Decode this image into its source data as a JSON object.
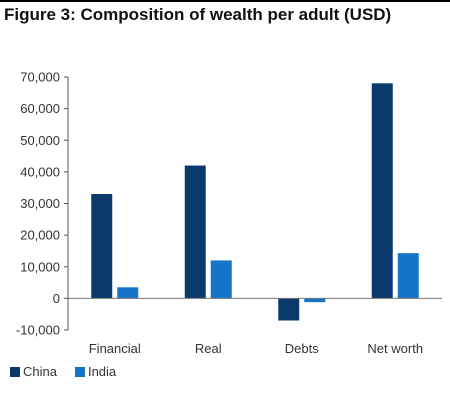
{
  "chart_data": {
    "type": "bar",
    "title": "Figure 3: Composition of wealth per adult (USD)",
    "categories": [
      "Financial",
      "Real",
      "Debts",
      "Net worth"
    ],
    "series": [
      {
        "name": "China",
        "color": "#0a3a6b",
        "values": [
          33000,
          42000,
          -7000,
          68000
        ]
      },
      {
        "name": "India",
        "color": "#1575c9",
        "values": [
          3500,
          12000,
          -1200,
          14300
        ]
      }
    ],
    "ylim": [
      -10000,
      70000
    ],
    "yticks": [
      70000,
      60000,
      50000,
      40000,
      30000,
      20000,
      10000,
      0,
      -10000
    ],
    "ytick_labels": [
      "70,000",
      "60,000",
      "50,000",
      "40,000",
      "30,000",
      "20,000",
      "10,000",
      "0",
      "-10,000"
    ],
    "grid": false,
    "legend_position": "bottom-left",
    "xlabel": "",
    "ylabel": ""
  }
}
